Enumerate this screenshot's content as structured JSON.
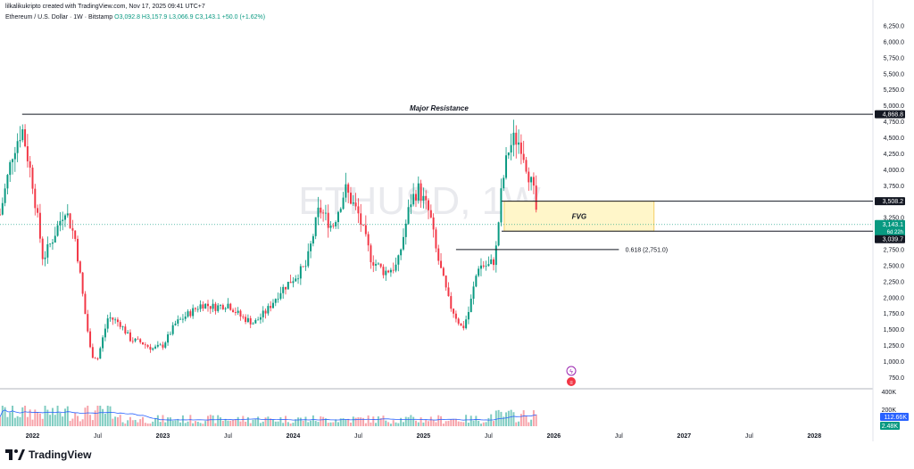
{
  "header": {
    "credit": "lilkalikukripto created with TradingView.com, Nov 17, 2025 09:41 UTC+7",
    "symbol": "Ethereum / U.S. Dollar · 1W · Bitstamp",
    "ohlc": "O3,092.8  H3,157.9  L3,066.9  C3,143.1  +50.0 (+1.62%)"
  },
  "watermark": "ETHUSD, 1W",
  "footer": {
    "brand": "TradingView"
  },
  "annotations": {
    "major_resistance": "Major Resistance",
    "fvg": "FVG",
    "fib": "0.618 (2,751.0)"
  },
  "price_labels": {
    "resistance": "4,868.8",
    "fvg_top": "3,508.2",
    "current": "3,143.1",
    "countdown": "6d 22h",
    "fvg_bottom": "3,039.7"
  },
  "volume_labels": {
    "current": "112.66K",
    "ma": "2.48K"
  },
  "colors": {
    "up": "#089981",
    "down": "#f23645",
    "fvg_fill": "#fff6c9",
    "fvg_border": "#f0c44a",
    "volume_up": "#7fccc1",
    "volume_down": "#f7a3aa",
    "volume_ma": "#2962ff",
    "line": "#131722",
    "current_bg": "#089981",
    "bottom_bg": "#131722"
  },
  "chart_data": {
    "type": "candlestick",
    "title": "",
    "price_axis": {
      "ticks": [
        "6,250.0",
        "6,000.0",
        "5,750.0",
        "5,500.0",
        "5,250.0",
        "5,000.0",
        "4,750.0",
        "4,500.0",
        "4,250.0",
        "4,000.0",
        "3,750.0",
        "3,250.0",
        "2,750.0",
        "2,500.0",
        "2,250.0",
        "2,000.0",
        "1,750.0",
        "1,500.0",
        "1,250.0",
        "1,000.0",
        "750.0"
      ],
      "range": [
        630,
        6390
      ]
    },
    "volume_axis": {
      "ticks": [
        "400K",
        "200K"
      ]
    },
    "time_axis": {
      "ticks": [
        "2022",
        "Jul",
        "2023",
        "Jul",
        "2024",
        "Jul",
        "2025",
        "Jul",
        "2026",
        "Jul",
        "2027",
        "Jul",
        "2028"
      ],
      "range_years": [
        2021.75,
        2028.45
      ]
    },
    "levels": {
      "major_resistance": 4868.8,
      "fvg_top": 3508.2,
      "fvg_bottom": 3039.7,
      "fib_0618": 2751.0,
      "current": 3143.1
    },
    "fvg_zone": {
      "from_year": 2025.62,
      "to_year": 2026.77,
      "low": 3039.7,
      "high": 3508.2
    },
    "last_candle": {
      "open": 3092.8,
      "high": 3157.9,
      "low": 3066.9,
      "close": 3143.1
    },
    "price_path": [
      [
        2021.75,
        3300
      ],
      [
        2021.85,
        4300
      ],
      [
        2021.92,
        4650
      ],
      [
        2022.0,
        3800
      ],
      [
        2022.08,
        2600
      ],
      [
        2022.15,
        2900
      ],
      [
        2022.25,
        3400
      ],
      [
        2022.33,
        2900
      ],
      [
        2022.4,
        1800
      ],
      [
        2022.45,
        1100
      ],
      [
        2022.5,
        1050
      ],
      [
        2022.58,
        1700
      ],
      [
        2022.67,
        1600
      ],
      [
        2022.75,
        1350
      ],
      [
        2022.83,
        1300
      ],
      [
        2022.92,
        1200
      ],
      [
        2023.0,
        1250
      ],
      [
        2023.1,
        1600
      ],
      [
        2023.2,
        1750
      ],
      [
        2023.3,
        1900
      ],
      [
        2023.4,
        1850
      ],
      [
        2023.5,
        1900
      ],
      [
        2023.6,
        1700
      ],
      [
        2023.7,
        1600
      ],
      [
        2023.8,
        1800
      ],
      [
        2023.9,
        2100
      ],
      [
        2024.0,
        2300
      ],
      [
        2024.1,
        2500
      ],
      [
        2024.2,
        3400
      ],
      [
        2024.3,
        3100
      ],
      [
        2024.4,
        3700
      ],
      [
        2024.5,
        3300
      ],
      [
        2024.6,
        2600
      ],
      [
        2024.7,
        2400
      ],
      [
        2024.8,
        2500
      ],
      [
        2024.9,
        3500
      ],
      [
        2024.96,
        3700
      ],
      [
        2025.05,
        3300
      ],
      [
        2025.1,
        2700
      ],
      [
        2025.2,
        1900
      ],
      [
        2025.3,
        1500
      ],
      [
        2025.35,
        1800
      ],
      [
        2025.42,
        2500
      ],
      [
        2025.5,
        2500
      ],
      [
        2025.55,
        2600
      ],
      [
        2025.6,
        3700
      ],
      [
        2025.65,
        4300
      ],
      [
        2025.7,
        4500
      ],
      [
        2025.75,
        4400
      ],
      [
        2025.8,
        4000
      ],
      [
        2025.85,
        3600
      ],
      [
        2025.88,
        3143
      ]
    ]
  }
}
